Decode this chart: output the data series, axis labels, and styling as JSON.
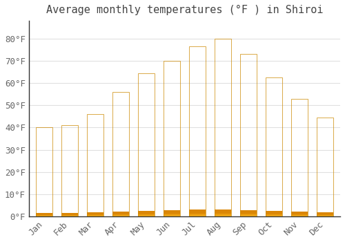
{
  "title": "Average monthly temperatures (°F ) in Shiroi",
  "months": [
    "Jan",
    "Feb",
    "Mar",
    "Apr",
    "May",
    "Jun",
    "Jul",
    "Aug",
    "Sep",
    "Oct",
    "Nov",
    "Dec"
  ],
  "values": [
    40,
    41,
    46,
    56,
    64.5,
    70,
    76.5,
    80,
    73,
    62.5,
    53,
    44.5
  ],
  "bar_color_top": "#F5A800",
  "bar_color_bottom": "#FFD966",
  "bar_color_left": "#FFD966",
  "background_color": "#FFFFFF",
  "grid_color": "#E0E0E0",
  "ylim": [
    0,
    88
  ],
  "yticks": [
    0,
    10,
    20,
    30,
    40,
    50,
    60,
    70,
    80
  ],
  "title_fontsize": 11,
  "tick_fontsize": 9,
  "font_family": "monospace"
}
